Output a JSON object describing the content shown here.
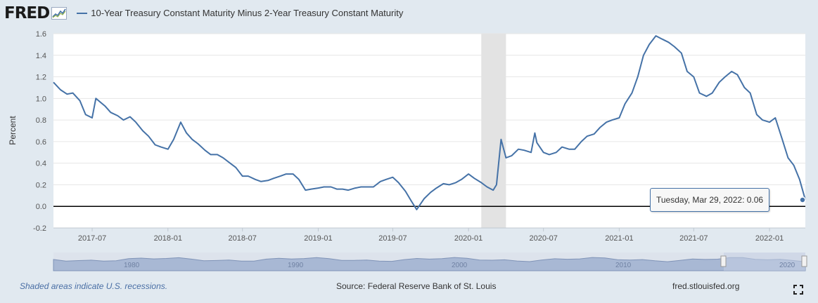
{
  "header": {
    "logo": "FRED",
    "series_title": "10-Year Treasury Constant Maturity Minus 2-Year Treasury Constant Maturity"
  },
  "colors": {
    "series": "#4572a7",
    "recession": "#e3e3e3",
    "navigator_fill": "#a8b8d4"
  },
  "chart_data": {
    "type": "line",
    "title": "10-Year Treasury Constant Maturity Minus 2-Year Treasury Constant Maturity",
    "xlabel": "",
    "ylabel": "Percent",
    "ylim": [
      -0.2,
      1.6
    ],
    "yticks": [
      "1.6",
      "1.4",
      "1.2",
      "1.0",
      "0.8",
      "0.6",
      "0.4",
      "0.2",
      "0.0",
      "-0.2"
    ],
    "xticks": [
      "2017-07",
      "2018-01",
      "2018-07",
      "2019-01",
      "2019-07",
      "2020-01",
      "2020-07",
      "2021-01",
      "2021-07",
      "2022-01"
    ],
    "xlim": [
      "2017-03-29",
      "2022-03-29"
    ],
    "recession": [
      "2020-02-01",
      "2020-04-01"
    ],
    "series": [
      {
        "name": "10-Year Treasury Constant Maturity Minus 2-Year Treasury Constant Maturity",
        "x": [
          "2017-03-29",
          "2017-04-15",
          "2017-05-01",
          "2017-05-15",
          "2017-06-01",
          "2017-06-15",
          "2017-07-01",
          "2017-07-10",
          "2017-08-01",
          "2017-08-15",
          "2017-09-01",
          "2017-09-15",
          "2017-10-01",
          "2017-10-15",
          "2017-11-01",
          "2017-11-15",
          "2017-12-01",
          "2017-12-15",
          "2018-01-01",
          "2018-01-15",
          "2018-02-01",
          "2018-02-15",
          "2018-03-01",
          "2018-03-15",
          "2018-04-01",
          "2018-04-15",
          "2018-05-01",
          "2018-05-15",
          "2018-06-01",
          "2018-06-15",
          "2018-07-01",
          "2018-07-15",
          "2018-08-01",
          "2018-08-15",
          "2018-09-01",
          "2018-09-15",
          "2018-10-01",
          "2018-10-15",
          "2018-11-01",
          "2018-11-15",
          "2018-12-01",
          "2018-12-15",
          "2019-01-01",
          "2019-01-15",
          "2019-02-01",
          "2019-02-15",
          "2019-03-01",
          "2019-03-15",
          "2019-04-01",
          "2019-04-15",
          "2019-05-01",
          "2019-05-15",
          "2019-06-01",
          "2019-06-15",
          "2019-07-01",
          "2019-07-15",
          "2019-08-01",
          "2019-08-15",
          "2019-08-28",
          "2019-09-15",
          "2019-10-01",
          "2019-10-15",
          "2019-11-01",
          "2019-11-15",
          "2019-12-01",
          "2019-12-15",
          "2020-01-01",
          "2020-01-15",
          "2020-02-01",
          "2020-02-15",
          "2020-03-01",
          "2020-03-09",
          "2020-03-20",
          "2020-04-01",
          "2020-04-15",
          "2020-05-01",
          "2020-05-15",
          "2020-06-01",
          "2020-06-10",
          "2020-06-15",
          "2020-07-01",
          "2020-07-15",
          "2020-08-01",
          "2020-08-15",
          "2020-09-01",
          "2020-09-15",
          "2020-10-01",
          "2020-10-15",
          "2020-11-01",
          "2020-11-15",
          "2020-12-01",
          "2020-12-15",
          "2021-01-01",
          "2021-01-15",
          "2021-02-01",
          "2021-02-15",
          "2021-03-01",
          "2021-03-15",
          "2021-03-31",
          "2021-04-15",
          "2021-05-01",
          "2021-05-15",
          "2021-06-01",
          "2021-06-15",
          "2021-07-01",
          "2021-07-15",
          "2021-08-01",
          "2021-08-15",
          "2021-09-01",
          "2021-09-15",
          "2021-10-01",
          "2021-10-15",
          "2021-11-01",
          "2021-11-15",
          "2021-12-01",
          "2021-12-15",
          "2022-01-01",
          "2022-01-15",
          "2022-02-01",
          "2022-02-15",
          "2022-03-01",
          "2022-03-15",
          "2022-03-29"
        ],
        "values": [
          1.15,
          1.08,
          1.04,
          1.05,
          0.98,
          0.85,
          0.82,
          1.0,
          0.93,
          0.87,
          0.84,
          0.8,
          0.83,
          0.78,
          0.7,
          0.65,
          0.57,
          0.55,
          0.53,
          0.62,
          0.78,
          0.68,
          0.62,
          0.58,
          0.52,
          0.48,
          0.48,
          0.45,
          0.4,
          0.36,
          0.28,
          0.28,
          0.25,
          0.23,
          0.24,
          0.26,
          0.28,
          0.3,
          0.3,
          0.25,
          0.15,
          0.16,
          0.17,
          0.18,
          0.18,
          0.16,
          0.16,
          0.15,
          0.17,
          0.18,
          0.18,
          0.18,
          0.23,
          0.25,
          0.27,
          0.22,
          0.14,
          0.05,
          -0.03,
          0.07,
          0.13,
          0.17,
          0.21,
          0.2,
          0.22,
          0.25,
          0.3,
          0.26,
          0.22,
          0.18,
          0.15,
          0.2,
          0.62,
          0.45,
          0.47,
          0.53,
          0.52,
          0.5,
          0.68,
          0.59,
          0.5,
          0.48,
          0.5,
          0.55,
          0.53,
          0.53,
          0.6,
          0.65,
          0.67,
          0.73,
          0.78,
          0.8,
          0.82,
          0.95,
          1.05,
          1.2,
          1.4,
          1.5,
          1.58,
          1.55,
          1.52,
          1.48,
          1.42,
          1.25,
          1.2,
          1.05,
          1.02,
          1.05,
          1.15,
          1.2,
          1.25,
          1.22,
          1.1,
          1.05,
          0.85,
          0.8,
          0.78,
          0.82,
          0.62,
          0.45,
          0.38,
          0.25,
          0.06
        ]
      }
    ],
    "tooltip": {
      "label": "Tuesday, Mar 29, 2022:",
      "value": "0.06"
    }
  },
  "navigator": {
    "ticks": [
      "1980",
      "1990",
      "2000",
      "2010",
      "2020"
    ]
  },
  "footer": {
    "recession_note": "Shaded areas indicate U.S. recessions.",
    "source": "Source: Federal Reserve Bank of St. Louis",
    "site": "fred.stlouisfed.org"
  }
}
